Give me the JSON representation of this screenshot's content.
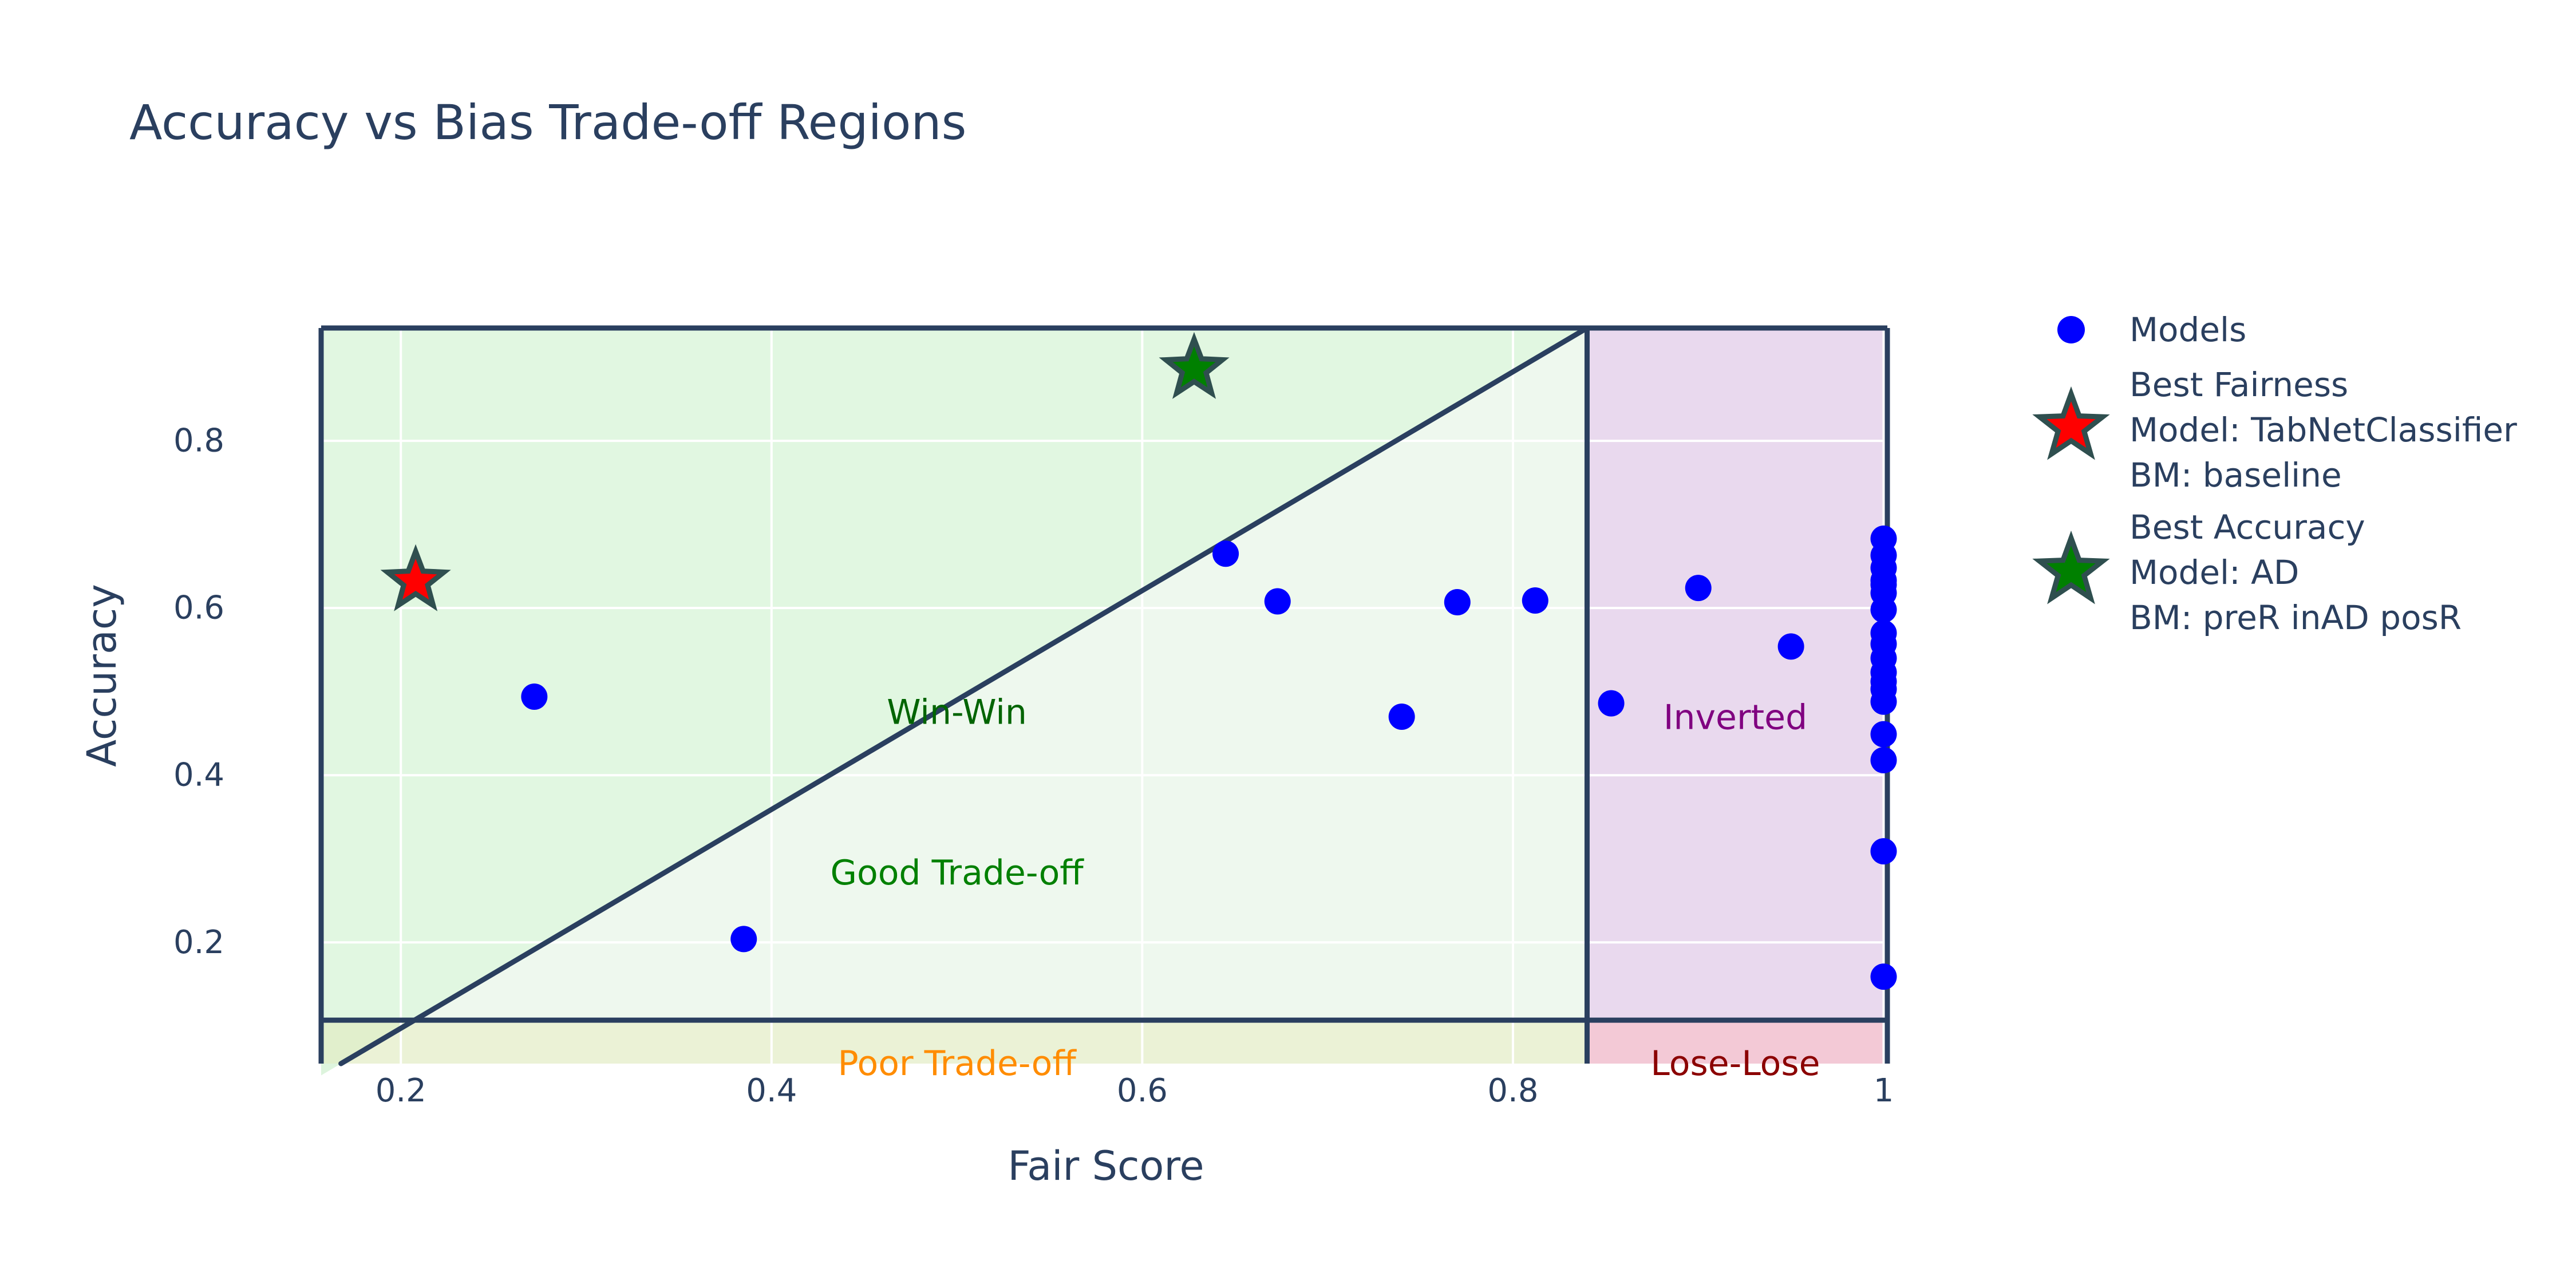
{
  "chart_data": {
    "type": "scatter",
    "title": "Accuracy vs Bias Trade-off Regions",
    "xlabel": "Fair Score",
    "ylabel": "Accuracy",
    "xlim": [
      0.157,
      1.002
    ],
    "ylim": [
      0.055,
      0.935
    ],
    "x_ticks": [
      {
        "value": 0.2,
        "label": "0.2"
      },
      {
        "value": 0.4,
        "label": "0.4"
      },
      {
        "value": 0.6,
        "label": "0.6"
      },
      {
        "value": 0.8,
        "label": "0.8"
      },
      {
        "value": 1.0,
        "label": "1"
      }
    ],
    "y_ticks": [
      {
        "value": 0.2,
        "label": "0.2"
      },
      {
        "value": 0.4,
        "label": "0.4"
      },
      {
        "value": 0.6,
        "label": "0.6"
      },
      {
        "value": 0.8,
        "label": "0.8"
      }
    ],
    "grid": true,
    "legend_position": "right",
    "colors": {
      "text": "#2a3f5f",
      "models": "#0000ff",
      "best_fairness": "#ff0000",
      "best_accuracy": "#008000",
      "marker_outline": "#2f4f4f",
      "boundary": "#2a3f5f",
      "winwin_region": "#c8f0c8",
      "goodtradeoff_region": "#daf0da",
      "inverted_region": "#e2cce8",
      "loselose_region": "#f0bccc",
      "poortradeoff_region": "#e2ecc4",
      "winwin_label": "#006400",
      "goodtradeoff_label": "#008000",
      "poortradeoff_label": "#ff8c00",
      "inverted_label": "#800080",
      "loselose_label": "#8b0000"
    },
    "boundaries": {
      "fair_threshold": 0.84,
      "accuracy_threshold": 0.107,
      "diagonal": [
        [
          0.157,
          0.041
        ],
        [
          0.84,
          0.935
        ]
      ]
    },
    "regions": [
      {
        "name": "Win-Win",
        "label_x": 0.5,
        "label_y": 0.475,
        "color_key": "winwin_label"
      },
      {
        "name": "Good Trade-off",
        "label_x": 0.5,
        "label_y": 0.283,
        "color_key": "goodtradeoff_label"
      },
      {
        "name": "Poor Trade-off",
        "label_x": 0.5,
        "label_y": 0.055,
        "color_key": "poortradeoff_label"
      },
      {
        "name": "Inverted",
        "label_x": 0.92,
        "label_y": 0.469,
        "color_key": "inverted_label"
      },
      {
        "name": "Lose-Lose",
        "label_x": 0.92,
        "label_y": 0.055,
        "color_key": "loselose_label"
      }
    ],
    "series": [
      {
        "name": "Models",
        "marker": "circle",
        "x": [
          0.272,
          0.385,
          0.645,
          0.673,
          0.74,
          0.77,
          0.812,
          0.853,
          0.9,
          0.95,
          1.0,
          1.0,
          1.0,
          1.0,
          1.0,
          1.0,
          1.0,
          1.0,
          1.0,
          1.0,
          1.0,
          1.0,
          1.0,
          1.0,
          1.0,
          1.0,
          1.0,
          1.0
        ],
        "y": [
          0.494,
          0.204,
          0.665,
          0.608,
          0.47,
          0.607,
          0.609,
          0.486,
          0.624,
          0.554,
          0.683,
          0.663,
          0.648,
          0.633,
          0.618,
          0.598,
          0.57,
          0.557,
          0.54,
          0.523,
          0.512,
          0.503,
          0.488,
          0.449,
          0.418,
          0.309,
          0.159,
          0.628
        ]
      },
      {
        "name": "Best Fairness",
        "legend_lines": [
          "Best Fairness",
          "Model: TabNetClassifier",
          "BM: baseline"
        ],
        "marker": "star",
        "x": [
          0.208
        ],
        "y": [
          0.632
        ]
      },
      {
        "name": "Best Accuracy",
        "legend_lines": [
          "Best Accuracy",
          "Model: AD",
          "BM: preR inAD posR"
        ],
        "marker": "star",
        "x": [
          0.628
        ],
        "y": [
          0.886
        ]
      }
    ]
  }
}
